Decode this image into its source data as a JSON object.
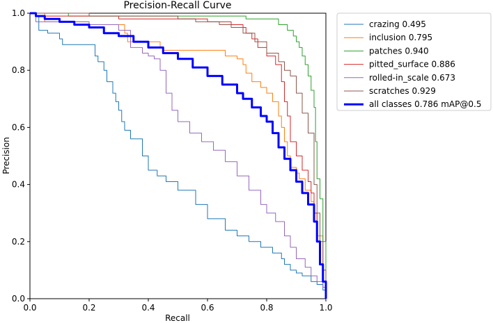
{
  "chart_data": {
    "type": "line",
    "title": "Precision-Recall Curve",
    "xlabel": "Recall",
    "ylabel": "Precision",
    "xlim": [
      0,
      1
    ],
    "ylim": [
      0,
      1
    ],
    "x_ticks": [
      "0.0",
      "0.2",
      "0.4",
      "0.6",
      "0.8",
      "1.0"
    ],
    "y_ticks": [
      "0.0",
      "0.2",
      "0.4",
      "0.6",
      "0.8",
      "1.0"
    ],
    "grid": false,
    "legend_position": "outside-top-right",
    "series": [
      {
        "name": "crazing 0.495",
        "color": "#1f77b4",
        "width": 1,
        "x": [
          0.0,
          0.02,
          0.03,
          0.06,
          0.1,
          0.11,
          0.2,
          0.22,
          0.23,
          0.25,
          0.26,
          0.28,
          0.29,
          0.3,
          0.31,
          0.32,
          0.34,
          0.38,
          0.4,
          0.43,
          0.46,
          0.5,
          0.56,
          0.6,
          0.66,
          0.7,
          0.74,
          0.78,
          0.82,
          0.85,
          0.86,
          0.88,
          0.9,
          0.92,
          0.95,
          0.97,
          0.99,
          1.0
        ],
        "y": [
          1.0,
          0.99,
          0.94,
          0.93,
          0.91,
          0.89,
          0.89,
          0.85,
          0.83,
          0.8,
          0.76,
          0.72,
          0.69,
          0.66,
          0.62,
          0.59,
          0.56,
          0.5,
          0.45,
          0.43,
          0.41,
          0.38,
          0.33,
          0.28,
          0.24,
          0.22,
          0.2,
          0.18,
          0.16,
          0.14,
          0.12,
          0.1,
          0.09,
          0.08,
          0.06,
          0.05,
          0.03,
          0.0
        ]
      },
      {
        "name": "inclusion 0.795",
        "color": "#ff7f0e",
        "width": 1,
        "x": [
          0.0,
          0.05,
          0.2,
          0.32,
          0.33,
          0.44,
          0.45,
          0.64,
          0.66,
          0.7,
          0.72,
          0.73,
          0.75,
          0.78,
          0.8,
          0.82,
          0.84,
          0.85,
          0.86,
          0.87,
          0.88,
          0.9,
          0.91,
          0.93,
          0.95,
          0.96,
          0.97,
          0.99,
          1.0
        ],
        "y": [
          1.0,
          0.97,
          0.96,
          0.93,
          0.9,
          0.88,
          0.87,
          0.87,
          0.85,
          0.84,
          0.82,
          0.79,
          0.76,
          0.74,
          0.72,
          0.69,
          0.64,
          0.6,
          0.55,
          0.5,
          0.46,
          0.44,
          0.42,
          0.38,
          0.34,
          0.3,
          0.22,
          0.1,
          0.0
        ]
      },
      {
        "name": "patches 0.940",
        "color": "#2ca02c",
        "width": 1,
        "x": [
          0.0,
          0.02,
          0.13,
          0.62,
          0.73,
          0.8,
          0.84,
          0.87,
          0.89,
          0.9,
          0.91,
          0.92,
          0.93,
          0.94,
          0.95,
          0.96,
          0.965,
          0.97,
          0.98,
          0.99,
          1.0
        ],
        "y": [
          1.0,
          1.0,
          0.99,
          0.99,
          0.98,
          0.98,
          0.96,
          0.94,
          0.92,
          0.9,
          0.88,
          0.85,
          0.82,
          0.78,
          0.73,
          0.67,
          0.55,
          0.42,
          0.35,
          0.2,
          0.0
        ]
      },
      {
        "name": "pitted_surface 0.886",
        "color": "#d62728",
        "width": 1,
        "x": [
          0.0,
          0.02,
          0.3,
          0.6,
          0.68,
          0.72,
          0.73,
          0.75,
          0.77,
          0.8,
          0.83,
          0.85,
          0.86,
          0.87,
          0.88,
          0.9,
          0.92,
          0.94,
          0.95,
          0.96,
          0.97,
          0.98,
          0.99,
          1.0
        ],
        "y": [
          1.0,
          0.99,
          0.98,
          0.97,
          0.96,
          0.95,
          0.93,
          0.91,
          0.88,
          0.85,
          0.82,
          0.76,
          0.69,
          0.64,
          0.55,
          0.5,
          0.45,
          0.41,
          0.37,
          0.3,
          0.2,
          0.12,
          0.06,
          0.0
        ]
      },
      {
        "name": "rolled-in_scale 0.673",
        "color": "#9467bd",
        "width": 1,
        "x": [
          0.0,
          0.02,
          0.2,
          0.3,
          0.34,
          0.38,
          0.4,
          0.42,
          0.44,
          0.46,
          0.48,
          0.5,
          0.54,
          0.58,
          0.62,
          0.66,
          0.7,
          0.74,
          0.78,
          0.8,
          0.83,
          0.86,
          0.88,
          0.9,
          0.93,
          0.95,
          0.97,
          0.99,
          1.0
        ],
        "y": [
          1.0,
          0.97,
          0.96,
          0.94,
          0.88,
          0.86,
          0.85,
          0.84,
          0.8,
          0.72,
          0.66,
          0.62,
          0.58,
          0.55,
          0.52,
          0.48,
          0.43,
          0.38,
          0.33,
          0.3,
          0.27,
          0.22,
          0.18,
          0.14,
          0.11,
          0.08,
          0.06,
          0.04,
          0.0
        ]
      },
      {
        "name": "scratches 0.929",
        "color": "#8c564b",
        "width": 1,
        "x": [
          0.0,
          0.02,
          0.2,
          0.5,
          0.56,
          0.64,
          0.68,
          0.72,
          0.76,
          0.8,
          0.84,
          0.86,
          0.88,
          0.9,
          0.92,
          0.94,
          0.96,
          0.97,
          0.98,
          0.99,
          1.0
        ],
        "y": [
          1.0,
          1.0,
          0.99,
          0.98,
          0.97,
          0.96,
          0.95,
          0.93,
          0.9,
          0.86,
          0.83,
          0.8,
          0.78,
          0.72,
          0.65,
          0.58,
          0.4,
          0.3,
          0.2,
          0.1,
          0.0
        ]
      },
      {
        "name": "all classes 0.786 mAP@0.5",
        "color": "#0000ff",
        "width": 3,
        "x": [
          0.0,
          0.02,
          0.05,
          0.1,
          0.15,
          0.2,
          0.25,
          0.3,
          0.35,
          0.4,
          0.45,
          0.5,
          0.55,
          0.6,
          0.65,
          0.7,
          0.72,
          0.75,
          0.78,
          0.8,
          0.82,
          0.84,
          0.86,
          0.88,
          0.9,
          0.92,
          0.94,
          0.96,
          0.97,
          0.98,
          0.99,
          1.0
        ],
        "y": [
          1.0,
          0.99,
          0.98,
          0.97,
          0.96,
          0.95,
          0.93,
          0.92,
          0.9,
          0.88,
          0.86,
          0.84,
          0.81,
          0.78,
          0.75,
          0.72,
          0.7,
          0.67,
          0.64,
          0.62,
          0.58,
          0.53,
          0.49,
          0.45,
          0.41,
          0.37,
          0.33,
          0.27,
          0.2,
          0.12,
          0.06,
          0.0
        ]
      }
    ]
  }
}
